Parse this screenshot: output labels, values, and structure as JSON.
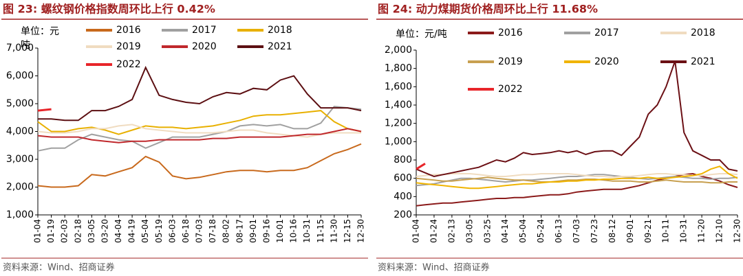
{
  "chart_data": [
    {
      "type": "line",
      "title": "图 23:  螺纹钢价格指数周环比上行 0.42%",
      "unit": [
        "单位：元",
        "吨"
      ],
      "source": "资料来源：Wind、招商证券",
      "categories": [
        "01-04",
        "01-19",
        "02-03",
        "02-18",
        "03-05",
        "03-20",
        "04-04",
        "04-19",
        "05-04",
        "05-19",
        "06-03",
        "06-18",
        "07-03",
        "07-18",
        "08-02",
        "08-17",
        "09-01",
        "09-16",
        "10-01",
        "10-16",
        "10-31",
        "11-15",
        "11-30",
        "12-15",
        "12-30"
      ],
      "ylim": [
        1000,
        7000
      ],
      "yticks": [
        {
          "value": 1000,
          "label": "1,000"
        },
        {
          "value": 2000,
          "label": "2,000"
        },
        {
          "value": 3000,
          "label": "3,000"
        },
        {
          "value": 4000,
          "label": "4,000"
        },
        {
          "value": 5000,
          "label": "5,000"
        },
        {
          "value": 6000,
          "label": "6,000"
        },
        {
          "value": 7000,
          "label": "7,000"
        }
      ],
      "series": [
        {
          "name": "2016",
          "color": "#c8691c",
          "values": [
            2050,
            2000,
            2000,
            2050,
            2450,
            2400,
            2550,
            2700,
            3100,
            2900,
            2400,
            2300,
            2350,
            2450,
            2550,
            2600,
            2600,
            2550,
            2600,
            2600,
            2700,
            2950,
            3200,
            3350,
            3550
          ]
        },
        {
          "name": "2017",
          "color": "#a0a0a0",
          "values": [
            3300,
            3400,
            3400,
            3700,
            3900,
            3800,
            3700,
            3650,
            3400,
            3600,
            3800,
            3800,
            3800,
            3900,
            4000,
            4200,
            4250,
            4200,
            4250,
            4100,
            4100,
            4300,
            4900,
            4850,
            4800
          ]
        },
        {
          "name": "2018",
          "color": "#e8b000",
          "values": [
            4350,
            4000,
            4000,
            4100,
            4150,
            4050,
            3900,
            4050,
            4200,
            4150,
            4150,
            4100,
            4150,
            4200,
            4300,
            4400,
            4550,
            4600,
            4600,
            4650,
            4700,
            4750,
            4350,
            4100,
            4000
          ]
        },
        {
          "name": "2019",
          "color": "#f0dcc0",
          "values": [
            4000,
            3950,
            3950,
            4000,
            4100,
            4100,
            4200,
            4250,
            4100,
            4050,
            4000,
            3950,
            3950,
            3950,
            4000,
            4050,
            4050,
            3950,
            3900,
            3850,
            3800,
            3900,
            3950,
            3950,
            3950
          ]
        },
        {
          "name": "2020",
          "color": "#c0282c",
          "values": [
            3850,
            3800,
            3800,
            3800,
            3700,
            3650,
            3600,
            3650,
            3650,
            3700,
            3700,
            3700,
            3700,
            3750,
            3750,
            3800,
            3800,
            3800,
            3800,
            3850,
            3900,
            3900,
            4000,
            4100,
            4000
          ]
        },
        {
          "name": "2021",
          "color": "#5c0f12",
          "values": [
            4450,
            4450,
            4400,
            4400,
            4750,
            4750,
            4900,
            5150,
            6300,
            5300,
            5150,
            5050,
            5000,
            5250,
            5400,
            5350,
            5550,
            5500,
            5850,
            6000,
            5350,
            4850,
            4850,
            4850,
            4750
          ]
        },
        {
          "name": "2022",
          "color": "#e8252a",
          "values": [
            4750,
            4800,
            null,
            null,
            null,
            null,
            null,
            null,
            null,
            null,
            null,
            null,
            null,
            null,
            null,
            null,
            null,
            null,
            null,
            null,
            null,
            null,
            null,
            null,
            null
          ]
        }
      ]
    },
    {
      "type": "line",
      "title": "图 24:  动力煤期货价格周环比上行 11.68%",
      "unit": [
        "单位：元/吨"
      ],
      "source": "资料来源：Wind、招商证券",
      "categories": [
        "01-04",
        null,
        "01-24",
        null,
        "02-13",
        null,
        "03-05",
        null,
        "03-25",
        null,
        "04-14",
        null,
        "05-04",
        null,
        "05-24",
        null,
        "06-13",
        null,
        "07-03",
        null,
        "07-23",
        null,
        "08-12",
        null,
        "09-01",
        null,
        "09-21",
        null,
        "10-11",
        null,
        "10-31",
        null,
        "11-20",
        null,
        "12-10",
        null,
        "12-30"
      ],
      "ylim": [
        200,
        2000
      ],
      "yticks": [
        200,
        400,
        600,
        800,
        {
          "value": 1000,
          "label": "1,000"
        },
        {
          "value": 1200,
          "label": "1,200"
        },
        {
          "value": 1400,
          "label": "1,400"
        },
        {
          "value": 1600,
          "label": "1,600"
        },
        {
          "value": 1800,
          "label": "1,800"
        },
        {
          "value": 2000,
          "label": "2,000"
        }
      ],
      "series": [
        {
          "name": "2016",
          "color": "#8b1a1a",
          "values": [
            300,
            310,
            320,
            330,
            330,
            340,
            350,
            360,
            370,
            380,
            380,
            390,
            390,
            400,
            410,
            420,
            420,
            430,
            450,
            460,
            470,
            480,
            480,
            480,
            500,
            520,
            550,
            580,
            600,
            620,
            640,
            650,
            620,
            600,
            570,
            530,
            500
          ]
        },
        {
          "name": "2017",
          "color": "#a0a0a0",
          "values": [
            520,
            530,
            540,
            560,
            580,
            600,
            600,
            590,
            580,
            570,
            560,
            570,
            580,
            580,
            590,
            600,
            610,
            620,
            620,
            630,
            640,
            640,
            630,
            620,
            610,
            600,
            590,
            600,
            610,
            620,
            610,
            600,
            600,
            590,
            600,
            600,
            610
          ]
        },
        {
          "name": "2018",
          "color": "#f0dcc0",
          "values": [
            620,
            630,
            640,
            640,
            650,
            650,
            650,
            640,
            630,
            620,
            620,
            630,
            640,
            640,
            650,
            650,
            650,
            650,
            640,
            630,
            620,
            620,
            610,
            620,
            620,
            630,
            640,
            650,
            650,
            640,
            640,
            630,
            630,
            640,
            650,
            650,
            640
          ]
        },
        {
          "name": "2019",
          "color": "#c8a050",
          "values": [
            600,
            590,
            580,
            570,
            570,
            580,
            590,
            600,
            610,
            600,
            590,
            580,
            580,
            570,
            560,
            560,
            570,
            580,
            580,
            590,
            590,
            580,
            570,
            570,
            570,
            560,
            560,
            570,
            580,
            570,
            560,
            560,
            560,
            550,
            550,
            560,
            560
          ]
        },
        {
          "name": "2020",
          "color": "#f0b400",
          "values": [
            550,
            540,
            530,
            520,
            510,
            500,
            490,
            490,
            500,
            510,
            520,
            530,
            540,
            540,
            550,
            560,
            560,
            570,
            570,
            580,
            580,
            590,
            590,
            600,
            600,
            600,
            610,
            600,
            600,
            610,
            620,
            630,
            650,
            700,
            730,
            650,
            600
          ]
        },
        {
          "name": "2021",
          "color": "#6b0f14",
          "values": [
            700,
            660,
            620,
            640,
            660,
            680,
            700,
            720,
            760,
            800,
            780,
            820,
            880,
            860,
            870,
            880,
            900,
            880,
            900,
            860,
            890,
            900,
            900,
            850,
            950,
            1050,
            1300,
            1400,
            1600,
            1880,
            1100,
            900,
            850,
            800,
            800,
            700,
            680
          ]
        },
        {
          "name": "2022",
          "color": "#e8252a",
          "values": [
            700,
            760,
            null,
            null,
            null,
            null,
            null,
            null,
            null,
            null,
            null,
            null,
            null,
            null,
            null,
            null,
            null,
            null,
            null,
            null,
            null,
            null,
            null,
            null,
            null,
            null,
            null,
            null,
            null,
            null,
            null,
            null,
            null,
            null,
            null,
            null,
            null
          ]
        }
      ]
    }
  ]
}
